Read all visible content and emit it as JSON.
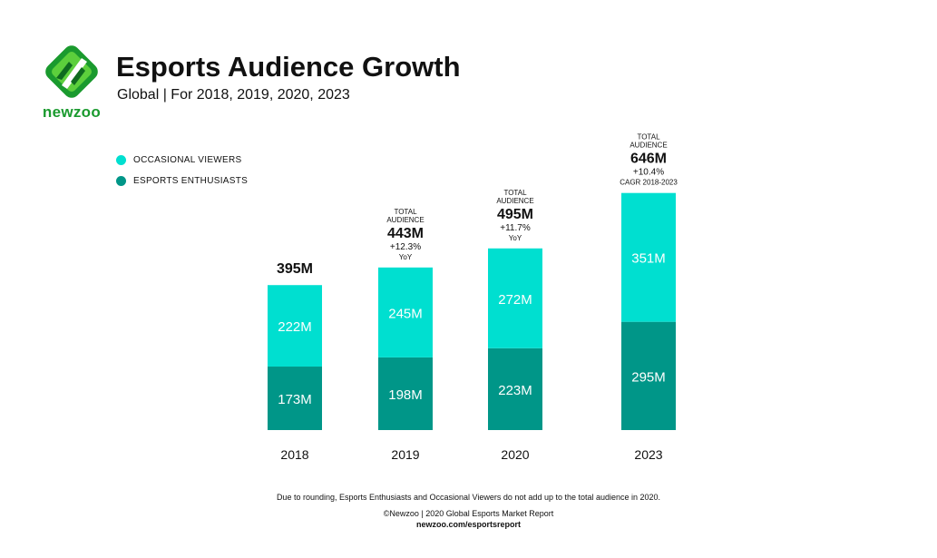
{
  "brand": {
    "name": "newzoo",
    "logo_colors": {
      "primary": "#1a9a2e",
      "dark": "#0f6b1f",
      "light": "#5ccf3c"
    }
  },
  "header": {
    "title": "Esports Audience Growth",
    "subtitle": "Global | For 2018, 2019, 2020, 2023"
  },
  "chart_data": {
    "type": "bar",
    "stacked": true,
    "categories": [
      "2018",
      "2019",
      "2020",
      "2023"
    ],
    "series": [
      {
        "name": "ESPORTS ENTHUSIASTS",
        "values": [
          173,
          198,
          223,
          295
        ],
        "labels": [
          "173M",
          "198M",
          "223M",
          "295M"
        ],
        "color": "#009688"
      },
      {
        "name": "OCCASIONAL VIEWERS",
        "values": [
          222,
          245,
          272,
          351
        ],
        "labels": [
          "222M",
          "245M",
          "272M",
          "351M"
        ],
        "color": "#00dfd0"
      }
    ],
    "legend": [
      {
        "name": "OCCASIONAL VIEWERS",
        "color": "#00dfd0"
      },
      {
        "name": "ESPORTS ENTHUSIASTS",
        "color": "#009688"
      }
    ],
    "totals": [
      {
        "category": "2018",
        "heading": "",
        "value": "395M",
        "change": "",
        "note": ""
      },
      {
        "category": "2019",
        "heading": "TOTAL\nAUDIENCE",
        "value": "443M",
        "change": "+12.3%",
        "note": "YoY"
      },
      {
        "category": "2020",
        "heading": "TOTAL\nAUDIENCE",
        "value": "495M",
        "change": "+11.7%",
        "note": "YoY"
      },
      {
        "category": "2023",
        "heading": "TOTAL\nAUDIENCE",
        "value": "646M",
        "change": "+10.4%",
        "note": "CAGR 2018-2023"
      }
    ],
    "title": "Esports Audience Growth",
    "xlabel": "",
    "ylabel": "",
    "grid": false,
    "legend_position": "top-left"
  },
  "footer": {
    "note": "Due to rounding, Esports Enthusiasts and Occasional Viewers do not add up to the total audience in 2020.",
    "credit": "©Newzoo | 2020 Global Esports Market Report",
    "url": "newzoo.com/esportsreport"
  }
}
